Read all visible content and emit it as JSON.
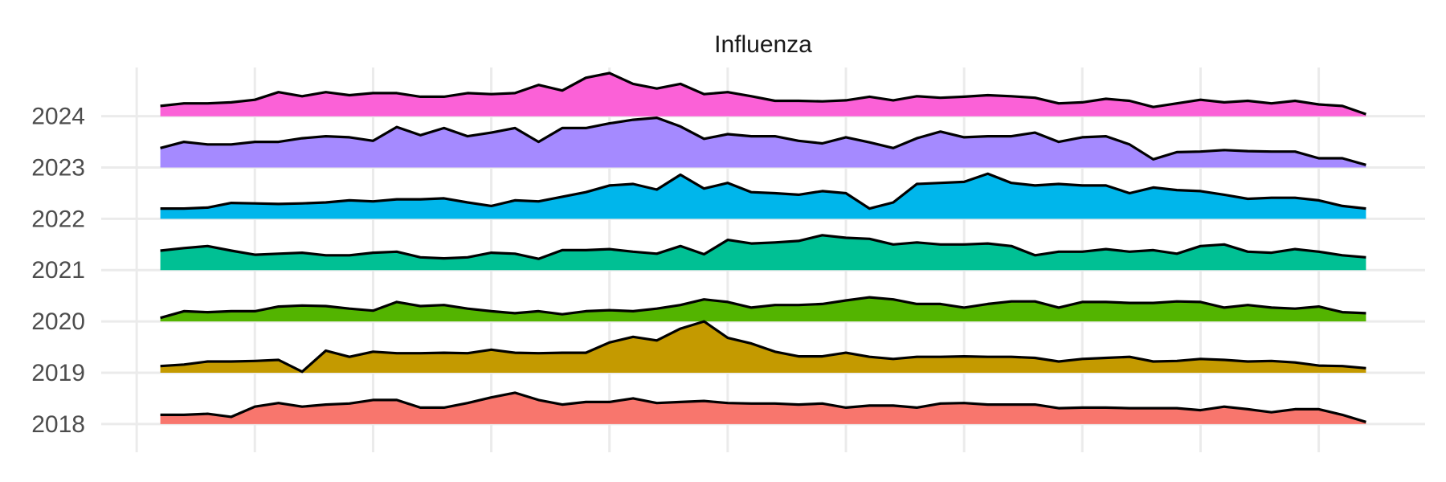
{
  "chart_data": {
    "type": "ridgeline",
    "title": "Influenza",
    "x": [
      1,
      2,
      3,
      4,
      5,
      6,
      7,
      8,
      9,
      10,
      11,
      12,
      13,
      14,
      15,
      16,
      17,
      18,
      19,
      20,
      21,
      22,
      23,
      24,
      25,
      26,
      27,
      28,
      29,
      30,
      31,
      32,
      33,
      34,
      35,
      36,
      37,
      38,
      39,
      40,
      41,
      42,
      43,
      44,
      45,
      46,
      47,
      48,
      49,
      50,
      51,
      52
    ],
    "xlim": [
      -1.5,
      54.5
    ],
    "xticks": [
      0,
      5,
      10,
      15,
      20,
      25,
      30,
      35,
      40,
      45,
      50
    ],
    "ylim": [
      2017.45,
      2024.95
    ],
    "yticks": [
      2018,
      2019,
      2020,
      2021,
      2022,
      2023,
      2024
    ],
    "grid": true,
    "line_color": "#000000",
    "series": [
      {
        "color": "#F8766D",
        "values": [
          0.18,
          0.18,
          0.2,
          0.14,
          0.34,
          0.41,
          0.34,
          0.38,
          0.4,
          0.47,
          0.47,
          0.32,
          0.32,
          0.41,
          0.52,
          0.61,
          0.47,
          0.38,
          0.43,
          0.43,
          0.5,
          0.41,
          0.43,
          0.45,
          0.41,
          0.4,
          0.4,
          0.38,
          0.4,
          0.32,
          0.36,
          0.36,
          0.32,
          0.4,
          0.41,
          0.38,
          0.38,
          0.38,
          0.31,
          0.32,
          0.32,
          0.31,
          0.31,
          0.31,
          0.27,
          0.34,
          0.29,
          0.23,
          0.29,
          0.29,
          0.18,
          0.04
        ]
      },
      {
        "color": "#C49A00",
        "values": [
          0.13,
          0.16,
          0.22,
          0.22,
          0.23,
          0.25,
          0.02,
          0.43,
          0.31,
          0.41,
          0.38,
          0.38,
          0.39,
          0.38,
          0.45,
          0.39,
          0.38,
          0.39,
          0.39,
          0.59,
          0.7,
          0.63,
          0.86,
          1.0,
          0.68,
          0.57,
          0.41,
          0.32,
          0.32,
          0.39,
          0.31,
          0.27,
          0.31,
          0.31,
          0.32,
          0.31,
          0.31,
          0.29,
          0.22,
          0.27,
          0.29,
          0.31,
          0.22,
          0.23,
          0.27,
          0.25,
          0.22,
          0.23,
          0.2,
          0.14,
          0.13,
          0.09
        ]
      },
      {
        "color": "#53B400",
        "values": [
          0.07,
          0.2,
          0.18,
          0.2,
          0.2,
          0.29,
          0.31,
          0.3,
          0.25,
          0.21,
          0.38,
          0.3,
          0.32,
          0.25,
          0.2,
          0.16,
          0.2,
          0.14,
          0.2,
          0.22,
          0.2,
          0.25,
          0.32,
          0.43,
          0.38,
          0.27,
          0.32,
          0.32,
          0.34,
          0.41,
          0.47,
          0.43,
          0.34,
          0.34,
          0.27,
          0.34,
          0.39,
          0.39,
          0.27,
          0.38,
          0.38,
          0.36,
          0.36,
          0.39,
          0.38,
          0.27,
          0.32,
          0.27,
          0.25,
          0.29,
          0.18,
          0.16
        ]
      },
      {
        "color": "#00C094",
        "values": [
          0.38,
          0.43,
          0.47,
          0.38,
          0.3,
          0.32,
          0.34,
          0.29,
          0.29,
          0.34,
          0.36,
          0.25,
          0.23,
          0.25,
          0.34,
          0.32,
          0.22,
          0.39,
          0.39,
          0.41,
          0.36,
          0.32,
          0.47,
          0.31,
          0.59,
          0.52,
          0.54,
          0.57,
          0.68,
          0.63,
          0.61,
          0.5,
          0.54,
          0.5,
          0.5,
          0.52,
          0.47,
          0.29,
          0.36,
          0.36,
          0.41,
          0.36,
          0.39,
          0.32,
          0.47,
          0.5,
          0.36,
          0.34,
          0.41,
          0.36,
          0.29,
          0.25
        ]
      },
      {
        "color": "#00B6EB",
        "values": [
          0.2,
          0.2,
          0.22,
          0.31,
          0.3,
          0.29,
          0.3,
          0.32,
          0.36,
          0.34,
          0.38,
          0.38,
          0.4,
          0.32,
          0.25,
          0.36,
          0.34,
          0.43,
          0.52,
          0.65,
          0.68,
          0.57,
          0.86,
          0.59,
          0.7,
          0.52,
          0.5,
          0.47,
          0.54,
          0.5,
          0.2,
          0.32,
          0.68,
          0.7,
          0.72,
          0.88,
          0.7,
          0.65,
          0.68,
          0.65,
          0.65,
          0.5,
          0.61,
          0.56,
          0.54,
          0.47,
          0.39,
          0.41,
          0.41,
          0.36,
          0.25,
          0.2
        ]
      },
      {
        "color": "#A58AFF",
        "values": [
          0.38,
          0.5,
          0.45,
          0.45,
          0.5,
          0.5,
          0.57,
          0.61,
          0.59,
          0.52,
          0.79,
          0.63,
          0.77,
          0.61,
          0.68,
          0.77,
          0.5,
          0.77,
          0.77,
          0.86,
          0.93,
          0.97,
          0.8,
          0.56,
          0.65,
          0.61,
          0.61,
          0.52,
          0.47,
          0.59,
          0.49,
          0.38,
          0.57,
          0.7,
          0.59,
          0.61,
          0.61,
          0.68,
          0.5,
          0.59,
          0.61,
          0.45,
          0.16,
          0.3,
          0.31,
          0.34,
          0.32,
          0.31,
          0.31,
          0.18,
          0.18,
          0.05
        ]
      },
      {
        "color": "#FB61D7",
        "values": [
          0.2,
          0.25,
          0.25,
          0.27,
          0.32,
          0.47,
          0.39,
          0.47,
          0.41,
          0.45,
          0.45,
          0.38,
          0.38,
          0.45,
          0.43,
          0.45,
          0.61,
          0.5,
          0.75,
          0.84,
          0.63,
          0.54,
          0.63,
          0.43,
          0.47,
          0.39,
          0.3,
          0.3,
          0.29,
          0.31,
          0.38,
          0.31,
          0.39,
          0.36,
          0.38,
          0.41,
          0.39,
          0.36,
          0.25,
          0.27,
          0.34,
          0.3,
          0.18,
          0.25,
          0.32,
          0.27,
          0.3,
          0.25,
          0.3,
          0.23,
          0.2,
          0.04
        ]
      }
    ]
  }
}
